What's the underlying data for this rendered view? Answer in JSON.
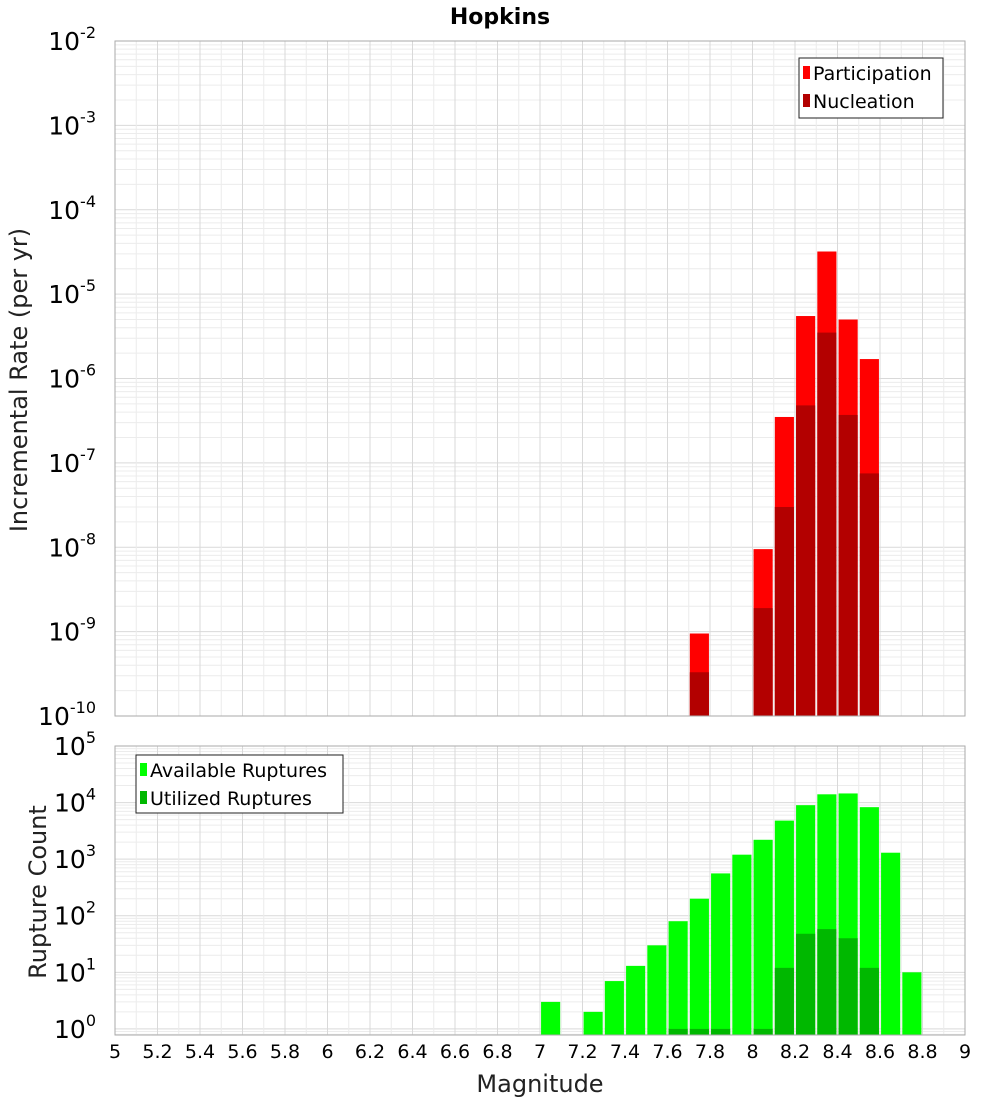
{
  "title": "Hopkins",
  "colors": {
    "participation": "#ff0000",
    "nucleation": "#b30000",
    "available": "#00ff00",
    "utilized": "#00b800",
    "grid_minor": "#ececec",
    "grid_major": "#d9d9d9",
    "frame": "#aaaaaa"
  },
  "x_axis": {
    "label": "Magnitude",
    "range": [
      5,
      9
    ],
    "tick_labels": [
      "5",
      "5.2",
      "5.4",
      "5.6",
      "5.8",
      "6",
      "6.2",
      "6.4",
      "6.6",
      "6.8",
      "7",
      "7.2",
      "7.4",
      "7.6",
      "7.8",
      "8",
      "8.2",
      "8.4",
      "8.6",
      "8.8",
      "9"
    ]
  },
  "chart_data": [
    {
      "type": "bar",
      "name": "rate_panel",
      "ylabel": "Incremental Rate (per yr)",
      "yscale": "log",
      "ylim": [
        1e-10,
        0.01
      ],
      "y_tick_base": "10",
      "y_tick_exponents": [
        "-10",
        "-9",
        "-8",
        "-7",
        "-6",
        "-5",
        "-4",
        "-3",
        "-2"
      ],
      "legend": {
        "position": "top-right",
        "entries": [
          "Participation",
          "Nucleation"
        ]
      },
      "bar_width": 0.09,
      "series": [
        {
          "name": "Participation",
          "x": [
            7.75,
            8.05,
            8.15,
            8.25,
            8.35,
            8.45,
            8.55
          ],
          "values": [
            9.5e-10,
            9.5e-09,
            3.5e-07,
            5.5e-06,
            3.2e-05,
            5e-06,
            1.7e-06
          ]
        },
        {
          "name": "Nucleation",
          "x": [
            7.75,
            8.05,
            8.15,
            8.25,
            8.35,
            8.45,
            8.55
          ],
          "values": [
            3.3e-10,
            1.9e-09,
            3e-08,
            4.8e-07,
            3.5e-06,
            3.7e-07,
            7.5e-08
          ]
        }
      ]
    },
    {
      "type": "bar",
      "name": "count_panel",
      "ylabel": "Rupture Count",
      "yscale": "log",
      "ylim": [
        0.78,
        100000
      ],
      "y_tick_base": "10",
      "y_tick_exponents": [
        "0",
        "1",
        "2",
        "3",
        "4",
        "5"
      ],
      "legend": {
        "position": "top-left",
        "entries": [
          "Available Ruptures",
          "Utilized Ruptures"
        ]
      },
      "bar_width": 0.09,
      "series": [
        {
          "name": "Available Ruptures",
          "x": [
            7.05,
            7.25,
            7.35,
            7.45,
            7.55,
            7.65,
            7.75,
            7.85,
            7.95,
            8.05,
            8.15,
            8.25,
            8.35,
            8.45,
            8.55,
            8.65,
            8.75
          ],
          "values": [
            3,
            2,
            7,
            13,
            30,
            80,
            200,
            560,
            1200,
            2200,
            4800,
            9000,
            14000,
            14500,
            8300,
            1300,
            10
          ]
        },
        {
          "name": "Utilized Ruptures",
          "x": [
            7.65,
            7.75,
            7.85,
            8.05,
            8.15,
            8.25,
            8.35,
            8.45,
            8.55
          ],
          "values": [
            1,
            1,
            1,
            1,
            12,
            48,
            58,
            40,
            12
          ]
        }
      ]
    }
  ]
}
